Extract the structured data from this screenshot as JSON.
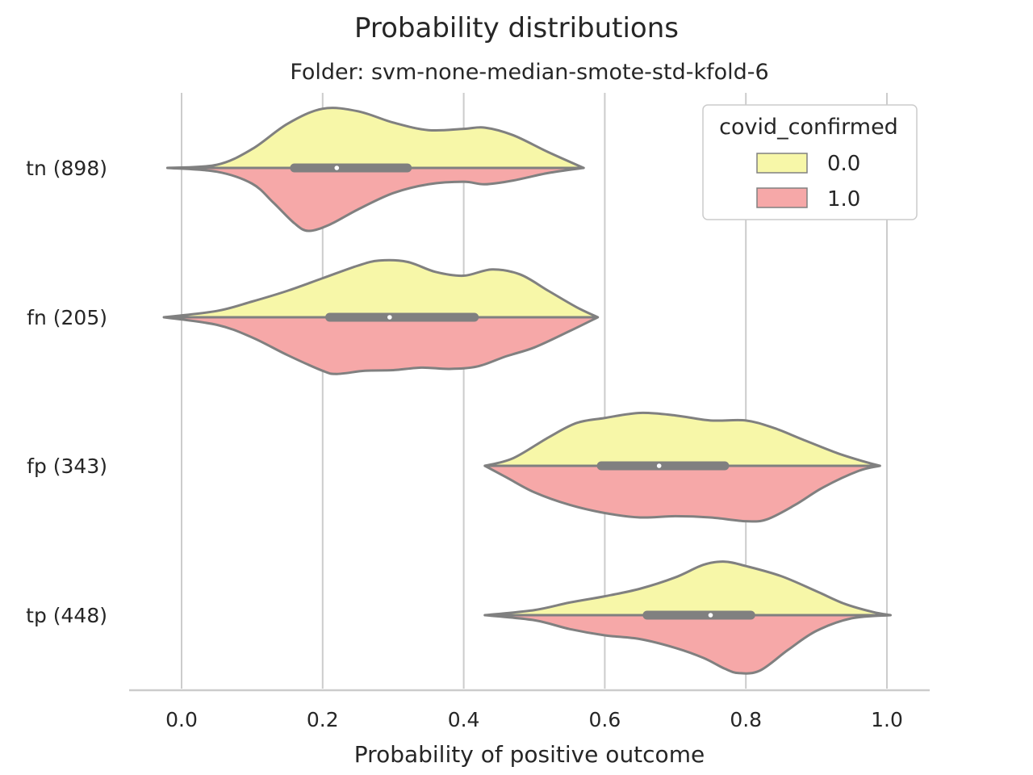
{
  "chart_data": {
    "type": "violin",
    "title": "Probability distributions",
    "subtitle": "Folder: svm-none-median-smote-std-kfold-6",
    "xlabel": "Probability of positive outcome",
    "ylabel": "",
    "xlim": [
      -0.075,
      1.06
    ],
    "xticks": [
      "0.0",
      "0.2",
      "0.4",
      "0.6",
      "0.8",
      "1.0"
    ],
    "xtick_values": [
      0.0,
      0.2,
      0.4,
      0.6,
      0.8,
      1.0
    ],
    "grid": "vertical",
    "categories": [
      "tn (898)",
      "fn (205)",
      "fp (343)",
      "tp (448)"
    ],
    "legend": {
      "title": "covid_confirmed",
      "placement": "top-right",
      "entries": [
        {
          "label": "0.0",
          "color": "#f7f7a8"
        },
        {
          "label": "1.0",
          "color": "#f6a8a8"
        }
      ]
    },
    "violins": [
      {
        "category": "tn (898)",
        "range": [
          -0.02,
          0.57
        ],
        "median": 0.22,
        "q1": 0.16,
        "q3": 0.32,
        "whisker": [
          0.07,
          0.5
        ],
        "upper_density": [
          [
            -0.02,
            0.0
          ],
          [
            0.05,
            0.05
          ],
          [
            0.1,
            0.3
          ],
          [
            0.15,
            0.7
          ],
          [
            0.2,
            0.94
          ],
          [
            0.25,
            0.9
          ],
          [
            0.3,
            0.72
          ],
          [
            0.35,
            0.6
          ],
          [
            0.4,
            0.62
          ],
          [
            0.43,
            0.64
          ],
          [
            0.47,
            0.52
          ],
          [
            0.52,
            0.25
          ],
          [
            0.57,
            0.0
          ]
        ],
        "lower_density": [
          [
            -0.02,
            0.0
          ],
          [
            0.05,
            0.06
          ],
          [
            0.1,
            0.25
          ],
          [
            0.13,
            0.55
          ],
          [
            0.16,
            0.88
          ],
          [
            0.18,
            1.0
          ],
          [
            0.21,
            0.9
          ],
          [
            0.25,
            0.66
          ],
          [
            0.3,
            0.4
          ],
          [
            0.35,
            0.26
          ],
          [
            0.4,
            0.22
          ],
          [
            0.43,
            0.26
          ],
          [
            0.47,
            0.2
          ],
          [
            0.52,
            0.08
          ],
          [
            0.57,
            0.0
          ]
        ]
      },
      {
        "category": "fn (205)",
        "range": [
          -0.025,
          0.59
        ],
        "median": 0.295,
        "q1": 0.21,
        "q3": 0.415,
        "whisker": [
          0.07,
          0.5
        ],
        "upper_density": [
          [
            -0.025,
            0.0
          ],
          [
            0.05,
            0.1
          ],
          [
            0.1,
            0.25
          ],
          [
            0.15,
            0.42
          ],
          [
            0.2,
            0.62
          ],
          [
            0.25,
            0.82
          ],
          [
            0.28,
            0.9
          ],
          [
            0.32,
            0.88
          ],
          [
            0.36,
            0.72
          ],
          [
            0.4,
            0.66
          ],
          [
            0.44,
            0.76
          ],
          [
            0.48,
            0.68
          ],
          [
            0.52,
            0.42
          ],
          [
            0.56,
            0.16
          ],
          [
            0.59,
            0.0
          ]
        ],
        "lower_density": [
          [
            -0.025,
            0.0
          ],
          [
            0.05,
            0.12
          ],
          [
            0.1,
            0.32
          ],
          [
            0.15,
            0.6
          ],
          [
            0.2,
            0.85
          ],
          [
            0.22,
            0.9
          ],
          [
            0.26,
            0.85
          ],
          [
            0.3,
            0.84
          ],
          [
            0.34,
            0.8
          ],
          [
            0.38,
            0.82
          ],
          [
            0.42,
            0.78
          ],
          [
            0.46,
            0.62
          ],
          [
            0.5,
            0.48
          ],
          [
            0.55,
            0.22
          ],
          [
            0.59,
            0.0
          ]
        ]
      },
      {
        "category": "fp (343)",
        "range": [
          0.43,
          0.99
        ],
        "median": 0.677,
        "q1": 0.595,
        "q3": 0.77,
        "whisker": [
          0.5,
          0.97
        ],
        "upper_density": [
          [
            0.43,
            0.0
          ],
          [
            0.47,
            0.12
          ],
          [
            0.52,
            0.45
          ],
          [
            0.56,
            0.68
          ],
          [
            0.6,
            0.76
          ],
          [
            0.65,
            0.84
          ],
          [
            0.7,
            0.8
          ],
          [
            0.75,
            0.72
          ],
          [
            0.8,
            0.72
          ],
          [
            0.84,
            0.6
          ],
          [
            0.88,
            0.42
          ],
          [
            0.93,
            0.2
          ],
          [
            0.97,
            0.06
          ],
          [
            0.99,
            0.0
          ]
        ],
        "lower_density": [
          [
            0.43,
            0.0
          ],
          [
            0.46,
            0.18
          ],
          [
            0.5,
            0.42
          ],
          [
            0.55,
            0.62
          ],
          [
            0.6,
            0.75
          ],
          [
            0.65,
            0.82
          ],
          [
            0.7,
            0.8
          ],
          [
            0.75,
            0.82
          ],
          [
            0.8,
            0.88
          ],
          [
            0.83,
            0.85
          ],
          [
            0.87,
            0.62
          ],
          [
            0.91,
            0.34
          ],
          [
            0.96,
            0.08
          ],
          [
            0.99,
            0.0
          ]
        ]
      },
      {
        "category": "tp (448)",
        "range": [
          0.43,
          1.005
        ],
        "median": 0.75,
        "q1": 0.66,
        "q3": 0.807,
        "whisker": [
          0.47,
          0.94
        ],
        "upper_density": [
          [
            0.43,
            0.0
          ],
          [
            0.5,
            0.08
          ],
          [
            0.55,
            0.2
          ],
          [
            0.6,
            0.3
          ],
          [
            0.65,
            0.42
          ],
          [
            0.7,
            0.6
          ],
          [
            0.74,
            0.8
          ],
          [
            0.77,
            0.85
          ],
          [
            0.8,
            0.78
          ],
          [
            0.85,
            0.62
          ],
          [
            0.9,
            0.38
          ],
          [
            0.94,
            0.18
          ],
          [
            0.98,
            0.05
          ],
          [
            1.005,
            0.0
          ]
        ],
        "lower_density": [
          [
            0.43,
            0.0
          ],
          [
            0.5,
            0.08
          ],
          [
            0.55,
            0.22
          ],
          [
            0.6,
            0.32
          ],
          [
            0.65,
            0.38
          ],
          [
            0.7,
            0.52
          ],
          [
            0.74,
            0.68
          ],
          [
            0.77,
            0.85
          ],
          [
            0.79,
            0.92
          ],
          [
            0.82,
            0.88
          ],
          [
            0.86,
            0.55
          ],
          [
            0.9,
            0.25
          ],
          [
            0.95,
            0.05
          ],
          [
            1.005,
            0.0
          ]
        ]
      }
    ],
    "colors": {
      "upper_fill": "#f7f7a8",
      "lower_fill": "#f6a8a8",
      "outline": "#808080",
      "grid": "#cccccc",
      "axis": "#cccccc"
    }
  }
}
